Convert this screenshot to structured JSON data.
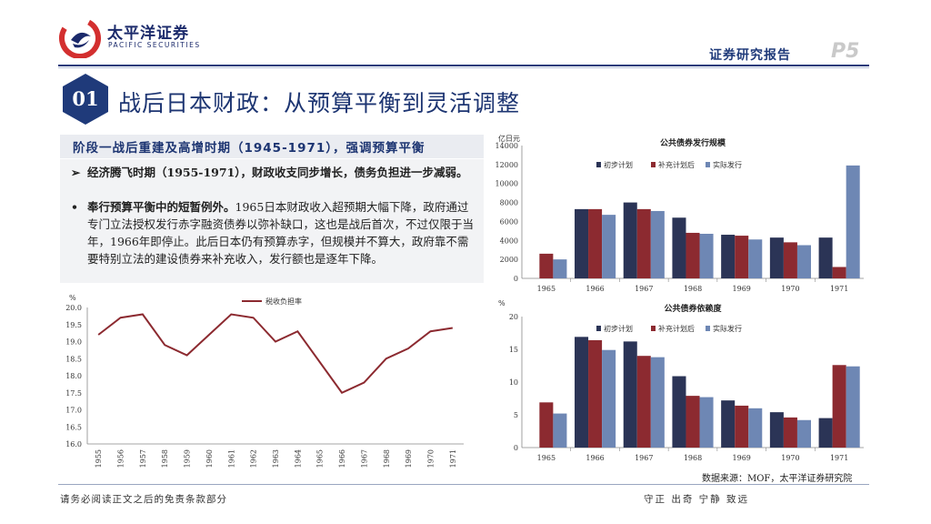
{
  "header": {
    "brand_cn": "太平洋证券",
    "brand_en": "PACIFIC SECURITIES",
    "report_type": "证券研究报告",
    "page": "P5"
  },
  "section": {
    "number": "01",
    "title": "战后日本财政：从预算平衡到灵活调整"
  },
  "subtitle": "阶段一战后重建及高增时期（1945-1971），强调预算平衡",
  "bullets": [
    {
      "marker": "➢",
      "bold": "经济腾飞时期（1955-1971），财政收支同步增长，债务负担进一步减弱。",
      "text": ""
    },
    {
      "marker": "•",
      "bold": "奉行预算平衡中的短暂例外。",
      "text": "1965日本财政收入超预期大幅下降，政府通过专门立法授权发行赤字融资债券以弥补缺口，这也是战后首次，不过仅限于当年，1966年即停止。此后日本仍有预算赤字，但规模并不算大，政府靠不需要特别立法的建设债券来补充收入，发行额也是逐年下降。"
    }
  ],
  "source": "数据来源：MOF，太平洋证券研究院",
  "footer": {
    "left": "请务必阅读正文之后的免责条款部分",
    "right": "守正 出奇 宁静 致远"
  },
  "colors": {
    "navy": "#2b3456",
    "red": "#8c2a30",
    "blue": "#6e87b4",
    "line": "#8c2a30",
    "title": "#1d3572"
  },
  "chart_data": [
    {
      "type": "line",
      "title": "",
      "ylabel": "%",
      "legend": [
        "税收负担率"
      ],
      "x": [
        "1955",
        "1956",
        "1957",
        "1958",
        "1959",
        "1960",
        "1961",
        "1962",
        "1963",
        "1964",
        "1965",
        "1966",
        "1967",
        "1968",
        "1969",
        "1970",
        "1971"
      ],
      "series": [
        {
          "name": "税收负担率",
          "values": [
            19.2,
            19.7,
            19.8,
            18.9,
            18.6,
            19.2,
            19.8,
            19.7,
            19.0,
            19.3,
            18.4,
            17.5,
            17.8,
            18.5,
            18.8,
            19.3,
            19.4
          ]
        }
      ],
      "ylim": [
        16.0,
        20.0
      ],
      "yticks": [
        "20.0",
        "19.5",
        "19.0",
        "18.5",
        "18.0",
        "17.5",
        "17.0",
        "16.5",
        "16.0"
      ]
    },
    {
      "type": "bar",
      "title": "公共债券发行规模",
      "ylabel": "亿日元",
      "categories": [
        "1965",
        "1966",
        "1967",
        "1968",
        "1969",
        "1970",
        "1971"
      ],
      "series": [
        {
          "name": "初步计划",
          "values": [
            0,
            7300,
            8000,
            6400,
            4600,
            4300,
            4300
          ]
        },
        {
          "name": "补充计划后",
          "values": [
            2600,
            7300,
            7300,
            4800,
            4500,
            3800,
            1200
          ]
        },
        {
          "name": "实际发行",
          "values": [
            2000,
            6700,
            7100,
            4700,
            4100,
            3500,
            11900
          ]
        }
      ],
      "ylim": [
        0,
        14000
      ],
      "yticks": [
        "14000",
        "12000",
        "10000",
        "8000",
        "6000",
        "4000",
        "2000",
        "0"
      ]
    },
    {
      "type": "bar",
      "title": "公共债券依赖度",
      "ylabel": "%",
      "categories": [
        "1965",
        "1966",
        "1967",
        "1968",
        "1969",
        "1970",
        "1971"
      ],
      "series": [
        {
          "name": "初步计划",
          "values": [
            0,
            16.9,
            16.2,
            10.9,
            7.2,
            5.4,
            4.5
          ]
        },
        {
          "name": "补充计划后",
          "values": [
            6.9,
            16.4,
            14.0,
            7.9,
            6.4,
            4.6,
            12.6
          ]
        },
        {
          "name": "实际发行",
          "values": [
            5.2,
            14.9,
            13.8,
            7.7,
            6.0,
            4.2,
            12.4
          ]
        }
      ],
      "ylim": [
        0,
        20
      ],
      "yticks": [
        "20",
        "15",
        "10",
        "5",
        "0"
      ]
    }
  ]
}
